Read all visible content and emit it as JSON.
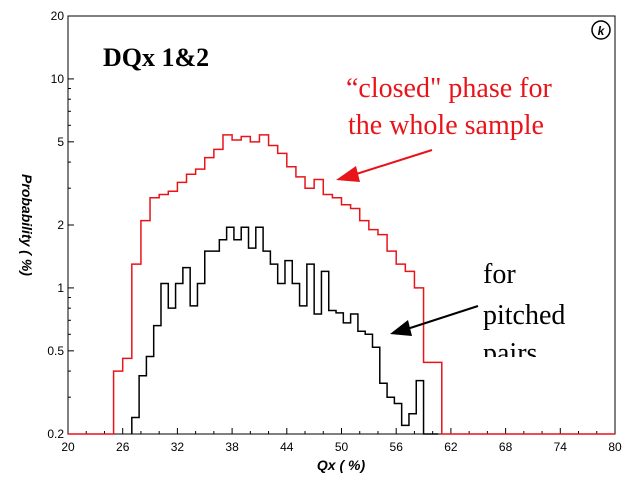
{
  "chart_data": {
    "type": "line",
    "title": "DQx 1&2",
    "xlabel": "Qx ( %)",
    "ylabel": "Probability ( %)",
    "xlim": [
      20,
      80
    ],
    "ylim": [
      0.2,
      20
    ],
    "yscale": "log",
    "grid": false,
    "xticks": [
      20,
      26,
      32,
      38,
      44,
      50,
      56,
      62,
      68,
      74,
      80
    ],
    "yticks": [
      0.2,
      0.5,
      1,
      2,
      5,
      10,
      20
    ],
    "series": [
      {
        "color": "#e8141a",
        "step": true,
        "bin_width": 1,
        "bin_starts": [
          20,
          21,
          22,
          23,
          24,
          25,
          26,
          27,
          28,
          29,
          30,
          31,
          32,
          33,
          34,
          35,
          36,
          37,
          38,
          39,
          40,
          41,
          42,
          43,
          44,
          45,
          46,
          47,
          48,
          49,
          50,
          51,
          52,
          53,
          54,
          55,
          56,
          57,
          58,
          59,
          60,
          61,
          62
        ],
        "values": [
          0.2,
          0.2,
          0.2,
          0.2,
          0.2,
          0.4,
          0.46,
          1.3,
          2.1,
          2.7,
          2.8,
          2.9,
          3.2,
          3.5,
          3.7,
          4.2,
          4.6,
          5.4,
          5.1,
          5.3,
          5.0,
          5.4,
          4.8,
          4.4,
          3.8,
          3.4,
          3.0,
          3.3,
          2.8,
          2.7,
          2.5,
          2.4,
          2.1,
          1.9,
          1.8,
          1.5,
          1.3,
          1.2,
          1.0,
          0.44,
          0.44,
          0.2,
          0.2
        ]
      },
      {
        "color": "#000000",
        "step": true,
        "bin_width": 0.8,
        "bin_starts": [
          27.0,
          27.8,
          28.6,
          29.4,
          30.2,
          31.0,
          31.8,
          32.6,
          33.4,
          34.2,
          35.0,
          35.8,
          36.6,
          37.4,
          38.2,
          39.0,
          39.8,
          40.6,
          41.4,
          42.2,
          43.0,
          43.8,
          44.6,
          45.4,
          46.2,
          47.0,
          47.8,
          48.6,
          49.4,
          50.2,
          51.0,
          51.8,
          52.6,
          53.4,
          54.2,
          55.0,
          55.8,
          56.6,
          57.4,
          58.2,
          59.0,
          59.8
        ],
        "values": [
          0.24,
          0.38,
          0.47,
          0.66,
          1.05,
          0.8,
          1.05,
          1.25,
          0.82,
          1.05,
          1.5,
          1.5,
          1.7,
          1.95,
          1.7,
          1.95,
          1.55,
          1.95,
          1.5,
          1.3,
          1.05,
          1.35,
          1.05,
          0.82,
          1.3,
          0.75,
          1.2,
          0.78,
          0.76,
          0.68,
          0.75,
          0.62,
          0.6,
          0.52,
          0.35,
          0.3,
          0.28,
          0.22,
          0.25,
          0.36,
          0.2,
          0.2
        ]
      }
    ],
    "annotations": [
      {
        "text": "“closed\" phase for",
        "color": "#e8141a"
      },
      {
        "text": "the whole sample",
        "color": "#e8141a"
      },
      {
        "text": "for",
        "color": "#000000"
      },
      {
        "text": "pitched",
        "color": "#000000"
      },
      {
        "text": "pairs",
        "color": "#000000"
      }
    ],
    "logo_text": "k"
  }
}
